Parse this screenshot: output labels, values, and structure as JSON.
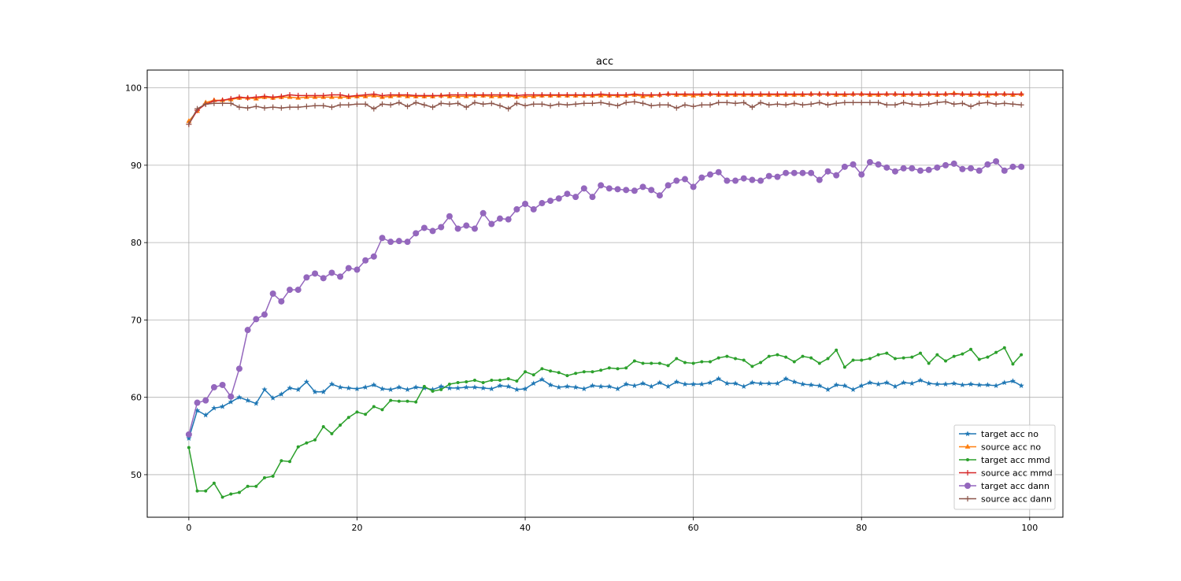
{
  "chart_data": {
    "type": "line",
    "title": "acc",
    "xlabel": "",
    "ylabel": "",
    "xlim": [
      -4.95,
      103.95
    ],
    "ylim": [
      44.5,
      102.3
    ],
    "xticks": [
      0,
      20,
      40,
      60,
      80,
      100
    ],
    "yticks": [
      50,
      60,
      70,
      80,
      90,
      100
    ],
    "grid": true,
    "legend_position": "lower right",
    "series": [
      {
        "name": "target acc no",
        "color": "#1f77b4",
        "marker": "star",
        "values": [
          54.7,
          58.3,
          57.7,
          58.6,
          58.8,
          59.4,
          60.0,
          59.6,
          59.2,
          61.0,
          59.9,
          60.4,
          61.2,
          61.0,
          62.0,
          60.7,
          60.7,
          61.7,
          61.3,
          61.2,
          61.1,
          61.3,
          61.6,
          61.1,
          61.0,
          61.3,
          61.0,
          61.3,
          61.2,
          61.0,
          61.4,
          61.2,
          61.2,
          61.3,
          61.3,
          61.2,
          61.1,
          61.5,
          61.4,
          61.0,
          61.1,
          61.8,
          62.3,
          61.6,
          61.3,
          61.4,
          61.3,
          61.1,
          61.5,
          61.4,
          61.4,
          61.1,
          61.7,
          61.5,
          61.8,
          61.4,
          61.9,
          61.4,
          62.0,
          61.7,
          61.7,
          61.7,
          61.9,
          62.4,
          61.8,
          61.8,
          61.4,
          61.9,
          61.8,
          61.8,
          61.8,
          62.4,
          62.0,
          61.7,
          61.6,
          61.5,
          61.0,
          61.6,
          61.5,
          61.0,
          61.5,
          61.9,
          61.7,
          61.9,
          61.4,
          61.9,
          61.8,
          62.2,
          61.8,
          61.7,
          61.7,
          61.8,
          61.6,
          61.7,
          61.6,
          61.6,
          61.5,
          61.9,
          62.1,
          61.5
        ]
      },
      {
        "name": "source acc no",
        "color": "#ff7f0e",
        "marker": "triangle",
        "values": [
          95.7,
          97.0,
          98.1,
          98.4,
          98.4,
          98.5,
          98.7,
          98.7,
          98.6,
          98.8,
          98.7,
          98.8,
          98.8,
          98.7,
          98.8,
          98.8,
          98.8,
          98.8,
          98.8,
          98.8,
          98.9,
          98.9,
          99.0,
          98.8,
          98.9,
          99.0,
          98.9,
          98.9,
          98.9,
          98.9,
          99.0,
          98.9,
          98.9,
          98.9,
          99.0,
          99.0,
          98.9,
          98.9,
          99.0,
          98.8,
          98.9,
          98.9,
          99.0,
          99.0,
          99.0,
          99.0,
          99.0,
          99.0,
          99.0,
          99.0,
          99.0,
          99.0,
          99.0,
          99.1,
          98.9,
          99.0,
          99.1,
          99.2,
          99.1,
          99.1,
          99.0,
          99.1,
          99.2,
          99.1,
          99.1,
          99.1,
          99.1,
          99.1,
          99.1,
          99.1,
          99.1,
          99.1,
          99.1,
          99.1,
          99.2,
          99.2,
          99.2,
          99.1,
          99.1,
          99.2,
          99.2,
          99.1,
          99.1,
          99.2,
          99.2,
          99.1,
          99.2,
          99.1,
          99.2,
          99.1,
          99.2,
          99.3,
          99.2,
          99.1,
          99.2,
          99.0,
          99.2,
          99.2,
          99.1,
          99.2
        ]
      },
      {
        "name": "target acc mmd",
        "color": "#2ca02c",
        "marker": "dot",
        "values": [
          53.5,
          47.9,
          47.9,
          48.9,
          47.1,
          47.5,
          47.7,
          48.5,
          48.5,
          49.6,
          49.8,
          51.8,
          51.7,
          53.6,
          54.1,
          54.5,
          56.2,
          55.3,
          56.4,
          57.4,
          58.1,
          57.8,
          58.8,
          58.4,
          59.6,
          59.5,
          59.5,
          59.4,
          61.4,
          60.8,
          61.0,
          61.7,
          61.9,
          62.0,
          62.2,
          61.9,
          62.2,
          62.2,
          62.4,
          62.1,
          63.3,
          62.9,
          63.7,
          63.4,
          63.2,
          62.8,
          63.1,
          63.3,
          63.3,
          63.5,
          63.8,
          63.7,
          63.8,
          64.7,
          64.4,
          64.4,
          64.4,
          64.1,
          65.0,
          64.5,
          64.4,
          64.6,
          64.6,
          65.1,
          65.3,
          65.0,
          64.8,
          64.0,
          64.5,
          65.3,
          65.5,
          65.2,
          64.6,
          65.3,
          65.1,
          64.4,
          65.0,
          66.1,
          63.9,
          64.8,
          64.8,
          65.0,
          65.5,
          65.7,
          65.0,
          65.1,
          65.2,
          65.7,
          64.4,
          65.5,
          64.7,
          65.3,
          65.6,
          66.2,
          64.9,
          65.2,
          65.8,
          66.4,
          64.3,
          65.5
        ]
      },
      {
        "name": "source acc mmd",
        "color": "#d62728",
        "marker": "plus",
        "values": [
          95.3,
          97.1,
          97.9,
          98.3,
          98.4,
          98.6,
          98.8,
          98.7,
          98.8,
          98.9,
          98.8,
          98.9,
          99.1,
          99.0,
          99.0,
          99.0,
          99.0,
          99.1,
          99.1,
          98.9,
          99.0,
          99.1,
          99.2,
          99.0,
          99.1,
          99.1,
          99.1,
          99.0,
          99.0,
          99.0,
          99.0,
          99.1,
          99.1,
          99.1,
          99.1,
          99.1,
          99.1,
          99.1,
          99.1,
          99.0,
          99.1,
          99.1,
          99.1,
          99.1,
          99.1,
          99.1,
          99.1,
          99.1,
          99.1,
          99.2,
          99.1,
          99.1,
          99.1,
          99.2,
          99.1,
          99.1,
          99.1,
          99.2,
          99.2,
          99.2,
          99.2,
          99.2,
          99.2,
          99.2,
          99.2,
          99.2,
          99.2,
          99.2,
          99.2,
          99.2,
          99.2,
          99.2,
          99.2,
          99.2,
          99.2,
          99.2,
          99.2,
          99.2,
          99.2,
          99.2,
          99.2,
          99.2,
          99.2,
          99.2,
          99.2,
          99.2,
          99.2,
          99.2,
          99.2,
          99.2,
          99.2,
          99.2,
          99.2,
          99.2,
          99.2,
          99.2,
          99.2,
          99.2,
          99.2,
          99.2
        ]
      },
      {
        "name": "target acc dann",
        "color": "#9467bd",
        "marker": "circle",
        "values": [
          55.2,
          59.3,
          59.6,
          61.3,
          61.6,
          60.1,
          63.7,
          68.7,
          70.1,
          70.7,
          73.4,
          72.4,
          73.9,
          73.9,
          75.5,
          76.0,
          75.4,
          76.1,
          75.6,
          76.7,
          76.5,
          77.7,
          78.2,
          80.6,
          80.1,
          80.2,
          80.1,
          81.2,
          81.9,
          81.5,
          82.0,
          83.4,
          81.8,
          82.2,
          81.8,
          83.8,
          82.4,
          83.1,
          83.0,
          84.3,
          85.0,
          84.3,
          85.1,
          85.4,
          85.7,
          86.3,
          85.9,
          87.0,
          85.9,
          87.4,
          87.0,
          86.9,
          86.8,
          86.7,
          87.2,
          86.8,
          86.1,
          87.4,
          88.0,
          88.2,
          87.2,
          88.4,
          88.8,
          89.1,
          88.0,
          88.0,
          88.3,
          88.1,
          88.0,
          88.6,
          88.5,
          89.0,
          89.0,
          89.0,
          89.0,
          88.1,
          89.2,
          88.7,
          89.8,
          90.1,
          88.8,
          90.4,
          90.1,
          89.7,
          89.2,
          89.6,
          89.6,
          89.3,
          89.4,
          89.7,
          90.0,
          90.2,
          89.5,
          89.6,
          89.3,
          90.1,
          90.5,
          89.3,
          89.8,
          89.8
        ]
      },
      {
        "name": "source acc dann",
        "color": "#8c564b",
        "marker": "plus",
        "values": [
          95.3,
          97.3,
          97.9,
          98.0,
          98.0,
          98.0,
          97.5,
          97.4,
          97.6,
          97.4,
          97.5,
          97.4,
          97.5,
          97.5,
          97.6,
          97.7,
          97.7,
          97.5,
          97.8,
          97.8,
          97.9,
          97.9,
          97.3,
          97.9,
          97.8,
          98.1,
          97.6,
          98.1,
          97.8,
          97.5,
          98.0,
          97.9,
          98.0,
          97.5,
          98.1,
          97.9,
          98.0,
          97.7,
          97.3,
          98.0,
          97.7,
          97.9,
          97.9,
          97.7,
          97.9,
          97.8,
          97.9,
          98.0,
          98.0,
          98.1,
          97.9,
          97.7,
          98.1,
          98.2,
          98.0,
          97.7,
          97.8,
          97.8,
          97.4,
          97.8,
          97.6,
          97.8,
          97.8,
          98.1,
          98.1,
          98.0,
          98.1,
          97.5,
          98.1,
          97.8,
          97.9,
          97.8,
          98.0,
          97.8,
          97.9,
          98.1,
          97.8,
          98.0,
          98.1,
          98.1,
          98.1,
          98.1,
          98.1,
          97.8,
          97.8,
          98.1,
          97.9,
          97.8,
          97.9,
          98.1,
          98.2,
          97.9,
          98.0,
          97.6,
          98.0,
          98.1,
          97.9,
          98.0,
          97.9,
          97.8
        ]
      }
    ]
  }
}
